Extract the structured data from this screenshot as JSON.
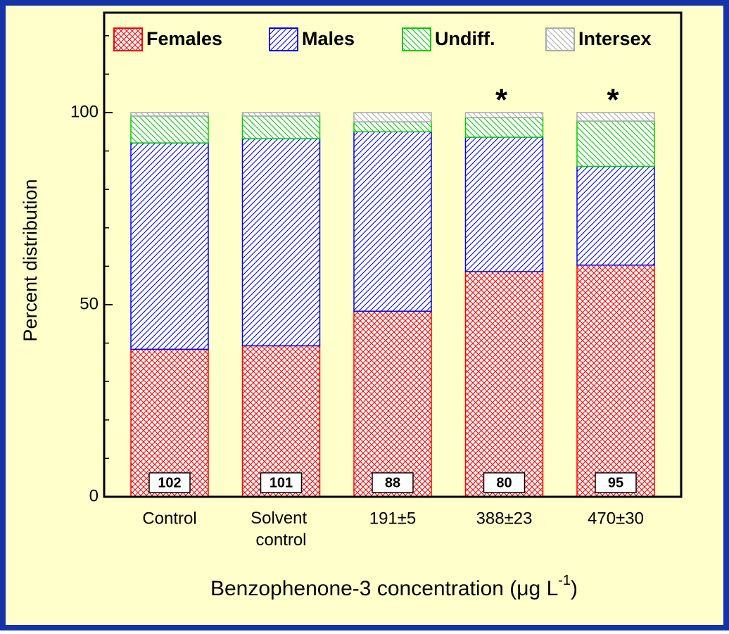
{
  "chart_data": {
    "type": "stacked_bar",
    "xlabel": {
      "text": "Benzophenone-3 concentration (μg L",
      "superscript": "-1",
      "closing": ")"
    },
    "ylabel": "Percent distribution",
    "categories": [
      "Control",
      "Solvent control",
      "191±5",
      "388±23",
      "470±30"
    ],
    "series": [
      {
        "name": "Females",
        "color": "#ff0000",
        "hatch": "cross",
        "values": [
          38.4,
          39.3,
          48.3,
          58.6,
          60.3
        ]
      },
      {
        "name": "Males",
        "color": "#0000ff",
        "hatch": "forward",
        "values": [
          53.7,
          53.9,
          46.7,
          35.0,
          25.7
        ]
      },
      {
        "name": "Undiff.",
        "color": "#00cc00",
        "hatch": "back",
        "values": [
          7.0,
          5.9,
          2.6,
          5.1,
          11.8
        ]
      },
      {
        "name": "Intersex",
        "color": "#aaaaaa",
        "hatch": "back",
        "values": [
          0.9,
          0.9,
          2.4,
          1.3,
          2.2
        ]
      }
    ],
    "sample_sizes": [
      "102",
      "101",
      "88",
      "80",
      "95"
    ],
    "significance": [
      null,
      null,
      null,
      "*",
      "*"
    ],
    "ylim": [
      0,
      126
    ],
    "yticks": [
      0,
      50,
      100
    ],
    "yticks_minor": [
      10,
      20,
      30,
      40,
      60,
      70,
      80,
      90,
      110,
      120
    ],
    "legend": "top",
    "grid": false
  }
}
